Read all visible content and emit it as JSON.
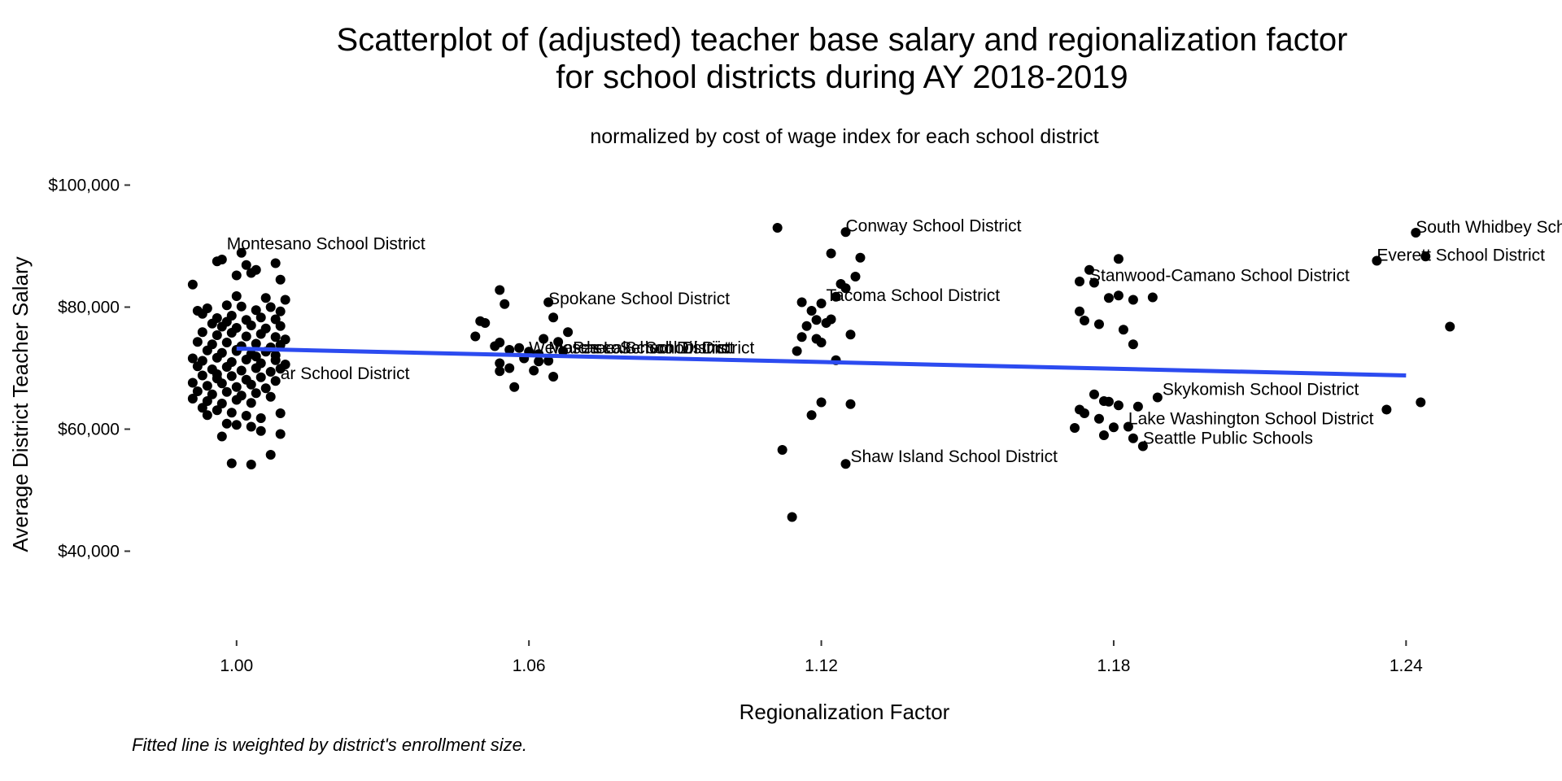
{
  "chart_data": {
    "type": "scatter",
    "title_line1": "Scatterplot of (adjusted) teacher base salary and regionalization factor",
    "title_line2": "for school districts during AY 2018-2019",
    "subtitle": "normalized by cost of wage index for each school district",
    "xlabel": "Regionalization Factor",
    "ylabel": "Average District Teacher Salary",
    "caption": "Fitted line is weighted by district's enrollment size.",
    "xlim": [
      0.979,
      1.272
    ],
    "ylim": [
      25000,
      103000
    ],
    "x_ticks": [
      1.0,
      1.06,
      1.12,
      1.18,
      1.24
    ],
    "x_tick_labels": [
      "1.00",
      "1.06",
      "1.12",
      "1.18",
      "1.24"
    ],
    "y_ticks": [
      40000,
      60000,
      80000,
      100000
    ],
    "y_tick_labels": [
      "$40,000",
      "$60,000",
      "$80,000",
      "$100,000"
    ],
    "grid": false,
    "point_color": "#000000",
    "fit_line": {
      "color": "#2c4bf0",
      "x": [
        1.0,
        1.24
      ],
      "y": [
        73200,
        68800
      ]
    },
    "labels": [
      {
        "text": "Montesano School District",
        "x": 0.998,
        "y": 89500
      },
      {
        "text": "Spokane School District",
        "x": 1.064,
        "y": 80500
      },
      {
        "text": "Conway School District",
        "x": 1.125,
        "y": 92400
      },
      {
        "text": "Tacoma School District",
        "x": 1.121,
        "y": 81000
      },
      {
        "text": "Shaw Island School District",
        "x": 1.126,
        "y": 54600
      },
      {
        "text": "Stanwood-Camano School District",
        "x": 1.175,
        "y": 84300
      },
      {
        "text": "Skykomish School District",
        "x": 1.19,
        "y": 65600
      },
      {
        "text": "Lake Washington School District",
        "x": 1.183,
        "y": 60800
      },
      {
        "text": "Seattle Public Schools",
        "x": 1.186,
        "y": 57600
      },
      {
        "text": "South Whidbey School District",
        "x": 1.242,
        "y": 92200
      },
      {
        "text": "Everett School District",
        "x": 1.234,
        "y": 87600
      },
      {
        "text": "ar School District",
        "x": 1.009,
        "y": 68200
      },
      {
        "text": "Wenatchee School District",
        "x": 1.06,
        "y": 72400
      },
      {
        "text": "Moses Lake School District",
        "x": 1.064,
        "y": 72400
      },
      {
        "text": "Pasco School District",
        "x": 1.069,
        "y": 72400
      }
    ],
    "points": [
      [
        1.001,
        88900
      ],
      [
        0.997,
        87800
      ],
      [
        0.996,
        87500
      ],
      [
        1.002,
        86900
      ],
      [
        1.004,
        86100
      ],
      [
        1.008,
        87200
      ],
      [
        1.0,
        85200
      ],
      [
        1.003,
        85600
      ],
      [
        0.991,
        83700
      ],
      [
        1.009,
        84500
      ],
      [
        1.01,
        81200
      ],
      [
        1.0,
        81800
      ],
      [
        0.992,
        79400
      ],
      [
        0.994,
        79800
      ],
      [
        0.998,
        80300
      ],
      [
        1.001,
        80100
      ],
      [
        1.004,
        79500
      ],
      [
        1.007,
        80000
      ],
      [
        1.009,
        79300
      ],
      [
        0.993,
        78900
      ],
      [
        0.996,
        78200
      ],
      [
        0.999,
        78600
      ],
      [
        1.002,
        77900
      ],
      [
        1.005,
        78300
      ],
      [
        1.008,
        78000
      ],
      [
        0.995,
        77300
      ],
      [
        0.997,
        76800
      ],
      [
        1.0,
        76600
      ],
      [
        1.003,
        77000
      ],
      [
        1.006,
        76500
      ],
      [
        1.009,
        76900
      ],
      [
        0.993,
        75900
      ],
      [
        0.996,
        75400
      ],
      [
        0.999,
        75800
      ],
      [
        1.002,
        75200
      ],
      [
        1.005,
        75600
      ],
      [
        1.008,
        75100
      ],
      [
        1.01,
        74700
      ],
      [
        0.992,
        74300
      ],
      [
        0.995,
        73900
      ],
      [
        0.998,
        74200
      ],
      [
        1.001,
        73600
      ],
      [
        1.004,
        74000
      ],
      [
        1.007,
        73400
      ],
      [
        1.009,
        73800
      ],
      [
        0.994,
        72900
      ],
      [
        0.997,
        72500
      ],
      [
        1.0,
        72800
      ],
      [
        1.003,
        72300
      ],
      [
        1.006,
        72700
      ],
      [
        1.008,
        72100
      ],
      [
        0.991,
        71600
      ],
      [
        0.993,
        71200
      ],
      [
        0.996,
        71700
      ],
      [
        0.999,
        71000
      ],
      [
        1.002,
        71400
      ],
      [
        1.005,
        70800
      ],
      [
        1.008,
        71300
      ],
      [
        1.01,
        70600
      ],
      [
        0.992,
        70300
      ],
      [
        0.995,
        69800
      ],
      [
        0.998,
        70200
      ],
      [
        1.001,
        69600
      ],
      [
        1.004,
        70000
      ],
      [
        1.007,
        69400
      ],
      [
        1.009,
        69900
      ],
      [
        0.993,
        68800
      ],
      [
        0.996,
        68300
      ],
      [
        0.999,
        68700
      ],
      [
        1.002,
        68100
      ],
      [
        1.005,
        68500
      ],
      [
        1.008,
        67900
      ],
      [
        0.991,
        67600
      ],
      [
        0.994,
        67100
      ],
      [
        0.997,
        67500
      ],
      [
        1.0,
        66900
      ],
      [
        1.003,
        67300
      ],
      [
        1.006,
        66700
      ],
      [
        0.992,
        66200
      ],
      [
        0.995,
        65700
      ],
      [
        0.998,
        66100
      ],
      [
        1.001,
        65500
      ],
      [
        1.004,
        65900
      ],
      [
        1.007,
        65300
      ],
      [
        0.991,
        65000
      ],
      [
        0.994,
        64600
      ],
      [
        0.997,
        64200
      ],
      [
        1.0,
        64800
      ],
      [
        1.003,
        64300
      ],
      [
        0.993,
        63500
      ],
      [
        0.996,
        63100
      ],
      [
        0.999,
        62700
      ],
      [
        1.002,
        62200
      ],
      [
        1.005,
        61800
      ],
      [
        1.009,
        62600
      ],
      [
        0.994,
        62300
      ],
      [
        0.998,
        60900
      ],
      [
        1.0,
        60700
      ],
      [
        1.003,
        60400
      ],
      [
        1.005,
        59700
      ],
      [
        1.009,
        59200
      ],
      [
        0.997,
        58800
      ],
      [
        1.007,
        55800
      ],
      [
        0.999,
        54400
      ],
      [
        1.003,
        54200
      ],
      [
        0.996,
        69000
      ],
      [
        1.0,
        73000
      ],
      [
        1.004,
        71900
      ],
      [
        0.998,
        77600
      ],
      [
        1.006,
        81500
      ],
      [
        1.054,
        82800
      ],
      [
        1.055,
        80500
      ],
      [
        1.05,
        77700
      ],
      [
        1.051,
        77400
      ],
      [
        1.049,
        75200
      ],
      [
        1.054,
        74200
      ],
      [
        1.053,
        73600
      ],
      [
        1.056,
        73000
      ],
      [
        1.058,
        73300
      ],
      [
        1.06,
        72700
      ],
      [
        1.062,
        72300
      ],
      [
        1.059,
        71600
      ],
      [
        1.062,
        71100
      ],
      [
        1.054,
        70800
      ],
      [
        1.056,
        70000
      ],
      [
        1.054,
        69500
      ],
      [
        1.061,
        69600
      ],
      [
        1.057,
        66900
      ],
      [
        1.063,
        74800
      ],
      [
        1.065,
        78300
      ],
      [
        1.064,
        80800
      ],
      [
        1.066,
        74300
      ],
      [
        1.068,
        75900
      ],
      [
        1.065,
        68600
      ],
      [
        1.064,
        71200
      ],
      [
        1.067,
        72800
      ],
      [
        1.111,
        93000
      ],
      [
        1.125,
        92300
      ],
      [
        1.122,
        88800
      ],
      [
        1.128,
        88100
      ],
      [
        1.127,
        85000
      ],
      [
        1.124,
        83800
      ],
      [
        1.125,
        83100
      ],
      [
        1.123,
        81700
      ],
      [
        1.116,
        80800
      ],
      [
        1.12,
        80600
      ],
      [
        1.118,
        79400
      ],
      [
        1.119,
        77900
      ],
      [
        1.117,
        76900
      ],
      [
        1.122,
        78000
      ],
      [
        1.121,
        77400
      ],
      [
        1.116,
        75100
      ],
      [
        1.119,
        74800
      ],
      [
        1.12,
        74200
      ],
      [
        1.126,
        75500
      ],
      [
        1.115,
        72800
      ],
      [
        1.123,
        71300
      ],
      [
        1.12,
        64400
      ],
      [
        1.126,
        64100
      ],
      [
        1.118,
        62300
      ],
      [
        1.112,
        56600
      ],
      [
        1.125,
        54300
      ],
      [
        1.114,
        45600
      ],
      [
        1.181,
        87900
      ],
      [
        1.175,
        86100
      ],
      [
        1.173,
        84200
      ],
      [
        1.176,
        84000
      ],
      [
        1.181,
        81900
      ],
      [
        1.179,
        81500
      ],
      [
        1.184,
        81200
      ],
      [
        1.188,
        81600
      ],
      [
        1.173,
        79300
      ],
      [
        1.174,
        77800
      ],
      [
        1.177,
        77200
      ],
      [
        1.182,
        76300
      ],
      [
        1.184,
        73900
      ],
      [
        1.176,
        65700
      ],
      [
        1.178,
        64600
      ],
      [
        1.179,
        64500
      ],
      [
        1.181,
        63900
      ],
      [
        1.185,
        63700
      ],
      [
        1.189,
        65200
      ],
      [
        1.173,
        63200
      ],
      [
        1.174,
        62600
      ],
      [
        1.177,
        61700
      ],
      [
        1.18,
        60300
      ],
      [
        1.172,
        60200
      ],
      [
        1.183,
        60400
      ],
      [
        1.178,
        59000
      ],
      [
        1.184,
        58500
      ],
      [
        1.186,
        57200
      ],
      [
        1.242,
        92200
      ],
      [
        1.234,
        87600
      ],
      [
        1.244,
        88300
      ],
      [
        1.249,
        76800
      ],
      [
        1.243,
        64400
      ],
      [
        1.236,
        63200
      ]
    ]
  }
}
